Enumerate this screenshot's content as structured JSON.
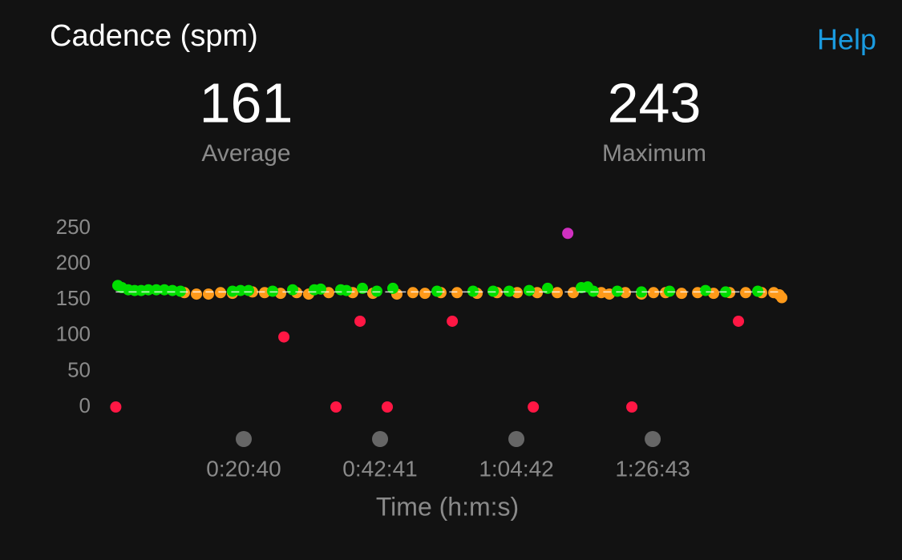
{
  "header": {
    "title": "Cadence (spm)",
    "help": "Help"
  },
  "stats": [
    {
      "value": 161,
      "label": "Average"
    },
    {
      "value": 243,
      "label": "Maximum"
    }
  ],
  "chart_data": {
    "type": "scatter",
    "x_label": "Time (h:m:s)",
    "xlim": [
      0,
      6500
    ],
    "ylim": [
      0,
      250
    ],
    "yticks": [
      0,
      50,
      100,
      150,
      200,
      250
    ],
    "xticks": [
      {
        "value": 1240,
        "label": "0:20:40"
      },
      {
        "value": 2561,
        "label": "0:42:41"
      },
      {
        "value": 3882,
        "label": "1:04:42"
      },
      {
        "value": 5203,
        "label": "1:26:43"
      }
    ],
    "series": [
      {
        "color": "#ff9a1a",
        "x": [
          665,
          782,
          898,
          1015,
          1131,
          1325,
          1442,
          1597,
          1753,
          1869,
          2063,
          2296,
          2491,
          2724,
          2879,
          2996,
          3151,
          3307,
          3501,
          3695,
          3890,
          4084,
          4278,
          4433,
          4705,
          4783,
          4938,
          5094,
          5211,
          5327,
          5483,
          5638,
          5793,
          5949,
          6104,
          6259,
          6376,
          6430,
          6454
        ],
        "values": [
          160,
          158,
          158,
          160,
          159,
          161,
          160,
          159,
          160,
          158,
          160,
          160,
          159,
          158,
          160,
          159,
          160,
          160,
          159,
          160,
          160,
          160,
          160,
          160,
          160,
          158,
          160,
          158,
          160,
          160,
          159,
          160,
          159,
          160,
          160,
          160,
          160,
          157,
          153
        ]
      },
      {
        "color": "#00dd00",
        "x": [
          20,
          59,
          121,
          183,
          246,
          316,
          393,
          471,
          549,
          627,
          1131,
          1209,
          1287,
          1520,
          1714,
          1924,
          1986,
          2180,
          2235,
          2390,
          2530,
          2685,
          3113,
          3462,
          3657,
          3812,
          4006,
          4185,
          4511,
          4573,
          4627,
          4860,
          5094,
          5366,
          5715,
          5910,
          6221
        ],
        "values": [
          170,
          167,
          164,
          163,
          163,
          164,
          164,
          164,
          163,
          162,
          162,
          163,
          163,
          162,
          164,
          164,
          165,
          164,
          163,
          166,
          162,
          166,
          162,
          162,
          162,
          162,
          163,
          166,
          167,
          168,
          162,
          162,
          161,
          162,
          163,
          161,
          162
        ]
      },
      {
        "color": "#ff1744",
        "x": [
          0,
          1629,
          2134,
          2367,
          2631,
          3261,
          4046,
          5001,
          6034
        ],
        "values": [
          0,
          98,
          0,
          120,
          0,
          120,
          0,
          0,
          120
        ]
      },
      {
        "color": "#d030c0",
        "x": [
          4380
        ],
        "values": [
          243
        ]
      }
    ]
  }
}
